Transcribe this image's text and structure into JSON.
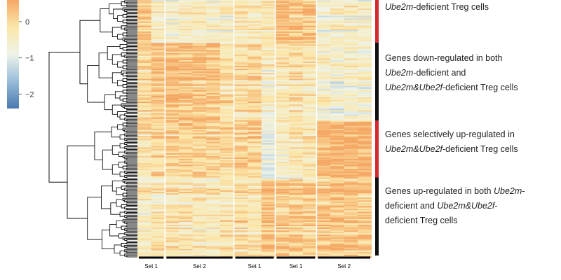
{
  "chart_data": {
    "type": "heatmap",
    "title": "",
    "color_scale": {
      "ticks": [
        0,
        -1,
        -2
      ],
      "range": [
        -2.4,
        0.6
      ],
      "colors": [
        "#4a78b0",
        "#a3c4de",
        "#eef3e8",
        "#fbe7a9",
        "#f5a865"
      ]
    },
    "columns": [
      {
        "group": "Set 1",
        "count": 2
      },
      {
        "group": "Set 2",
        "count": 5
      },
      {
        "group": "Set 1",
        "count": 3
      },
      {
        "group": "Set 1",
        "count": 3
      },
      {
        "group": "Set 2",
        "count": 4
      }
    ],
    "column_group_labels": [
      "Set 1",
      "Set 2",
      "Set 1",
      "Set 1",
      "Set 2"
    ],
    "row_blocks": [
      {
        "label": "Ube2m-deficient Treg cells",
        "rows": 30,
        "column_means": [
          0.2,
          -0.55,
          -0.6,
          -0.5,
          -0.45,
          -0.55,
          -0.5,
          -0.4,
          -0.45,
          -0.3,
          0.45,
          0.2,
          0.3,
          -0.6,
          -0.5,
          -0.55,
          -0.5
        ],
        "bar_color": "#d42a2f"
      },
      {
        "label": "Genes down-regulated in both Ube2m-deficient and Ube2m&Ube2f-deficient Treg cells",
        "rows": 55,
        "column_means": [
          -0.1,
          0.25,
          0.3,
          0.25,
          0.2,
          0.15,
          -0.15,
          -0.1,
          -0.05,
          -0.5,
          -0.3,
          -0.2,
          -0.35,
          -0.55,
          -0.7,
          -0.6,
          -0.65
        ],
        "bar_color": "#111111"
      },
      {
        "label": "Genes selectively up-regulated in Ube2m&Ube2f-deficient Treg cells",
        "rows": 40,
        "column_means": [
          -0.2,
          -0.05,
          0.0,
          0.05,
          0.0,
          -0.05,
          -0.1,
          0.0,
          0.05,
          -1.0,
          -0.6,
          -0.4,
          -0.3,
          0.35,
          0.4,
          0.45,
          0.4
        ],
        "bar_color": "#d42a2f"
      },
      {
        "label": "Genes up-regulated in both Ube2m-deficient and Ube2m&Ube2f-deficient Treg cells",
        "rows": 55,
        "column_means": [
          -0.35,
          -0.3,
          -0.25,
          -0.3,
          -0.35,
          -0.3,
          -0.2,
          -0.15,
          -0.2,
          0.3,
          0.25,
          0.2,
          0.15,
          0.25,
          0.3,
          0.25,
          0.2
        ],
        "bar_color": "#111111"
      }
    ]
  },
  "legend": {
    "tick_labels": [
      "0",
      "−1",
      "−2"
    ]
  },
  "annotations": [
    {
      "parts": [
        {
          "text": "Ube2m",
          "italic": true
        },
        {
          "text": "-deficient Treg cells",
          "italic": false
        }
      ]
    },
    {
      "parts": [
        {
          "text": "Genes down-regulated in both",
          "italic": false,
          "br": true
        },
        {
          "text": "Ube2m",
          "italic": true
        },
        {
          "text": "-deficient and",
          "italic": false,
          "br": true
        },
        {
          "text": "Ube2m&Ube2f",
          "italic": true
        },
        {
          "text": "-deficient Treg cells",
          "italic": false
        }
      ]
    },
    {
      "parts": [
        {
          "text": "Genes selectively up-regulated in",
          "italic": false,
          "br": true
        },
        {
          "text": "Ube2m&Ube2f",
          "italic": true
        },
        {
          "text": "-deficient Treg cells",
          "italic": false
        }
      ]
    },
    {
      "parts": [
        {
          "text": "Genes up-regulated in both ",
          "italic": false
        },
        {
          "text": "Ube2m",
          "italic": true
        },
        {
          "text": "-",
          "italic": false,
          "br": true
        },
        {
          "text": "deficient and ",
          "italic": false
        },
        {
          "text": "Ube2m&Ube2f",
          "italic": true
        },
        {
          "text": "-",
          "italic": false,
          "br": true
        },
        {
          "text": "deficient Treg cells",
          "italic": false
        }
      ]
    }
  ]
}
